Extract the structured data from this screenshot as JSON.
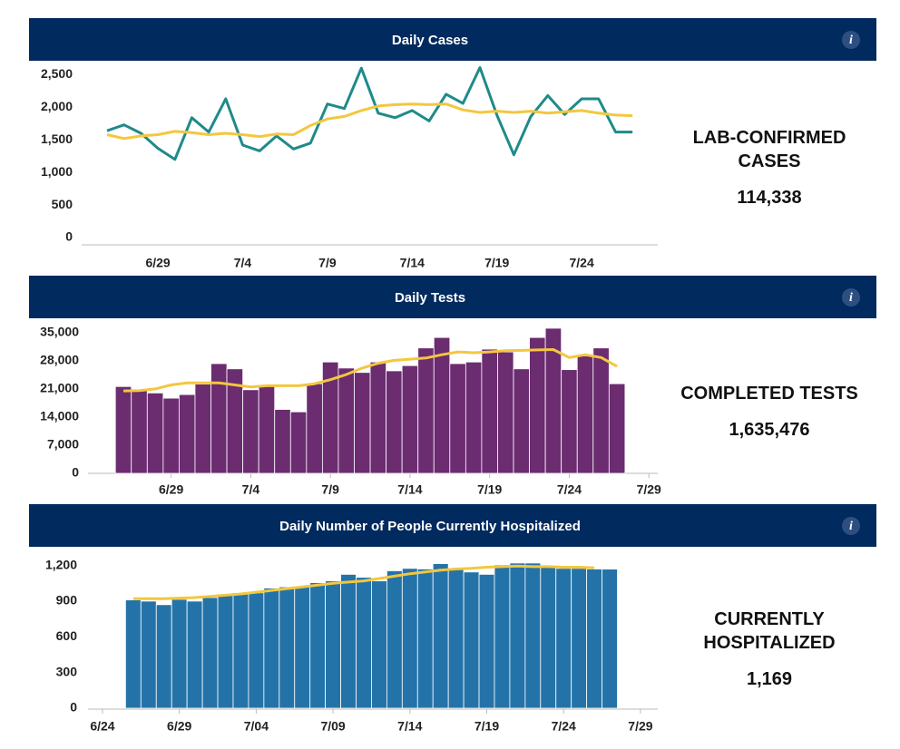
{
  "chart_data": [
    {
      "type": "line",
      "title": "Daily Cases",
      "info_icon": "i",
      "summary": {
        "label": "LAB-CONFIRMED CASES",
        "value": "114,338"
      },
      "categories": [
        null,
        null,
        null,
        "6/29",
        null,
        null,
        null,
        null,
        "7/4",
        null,
        null,
        null,
        null,
        "7/9",
        null,
        null,
        null,
        null,
        "7/14",
        null,
        null,
        null,
        null,
        "7/19",
        null,
        null,
        null,
        null,
        "7/24",
        null,
        null,
        null
      ],
      "series": [
        {
          "type": "line",
          "color": "#1f8a8a",
          "values": [
            1640,
            1730,
            1600,
            1370,
            1200,
            1840,
            1620,
            2130,
            1420,
            1330,
            1560,
            1360,
            1450,
            2050,
            1980,
            2600,
            1910,
            1840,
            1950,
            1790,
            2200,
            2060,
            2610,
            1880,
            1270,
            1860,
            2180,
            1890,
            2130,
            2130,
            1620,
            1620
          ]
        },
        {
          "type": "line",
          "color": "#f3c73f",
          "values": [
            1580,
            1520,
            1560,
            1580,
            1630,
            1610,
            1580,
            1600,
            1580,
            1550,
            1590,
            1580,
            1720,
            1820,
            1860,
            1950,
            2020,
            2040,
            2050,
            2040,
            2050,
            1960,
            1920,
            1940,
            1920,
            1940,
            1910,
            1930,
            1950,
            1910,
            1880,
            1870
          ]
        }
      ],
      "ylim": [
        0,
        2700
      ],
      "yticks": [
        0,
        500,
        {
          "value": 1000,
          "label": "1,000"
        },
        {
          "value": 1500,
          "label": "1,500"
        },
        {
          "value": 2000,
          "label": "2,000"
        },
        {
          "value": 2500,
          "label": "2,500"
        }
      ]
    },
    {
      "type": "bar",
      "title": "Daily Tests",
      "info_icon": "i",
      "summary": {
        "label": "COMPLETED TESTS",
        "value": "1,635,476"
      },
      "categories": [
        null,
        null,
        null,
        "6/29",
        null,
        null,
        null,
        null,
        "7/4",
        null,
        null,
        null,
        null,
        "7/9",
        null,
        null,
        null,
        null,
        "7/14",
        null,
        null,
        null,
        null,
        "7/19",
        null,
        null,
        null,
        null,
        "7/24",
        null,
        null,
        null,
        null,
        "7/29"
      ],
      "series": [
        {
          "type": "bar",
          "color": "#6b2c70",
          "values": [
            21600,
            20600,
            20000,
            18700,
            19600,
            22200,
            27300,
            26000,
            20800,
            21800,
            15900,
            15300,
            22300,
            27700,
            26200,
            25100,
            27700,
            25500,
            26800,
            31200,
            33800,
            27300,
            27700,
            30900,
            30200,
            26000,
            33800,
            36100,
            25800,
            29200,
            31200,
            22300,
            null,
            null
          ]
        },
        {
          "type": "line",
          "color": "#f3c73f",
          "values": [
            20500,
            20600,
            21000,
            22000,
            22500,
            22500,
            22500,
            22000,
            21500,
            21800,
            21800,
            21800,
            22300,
            23300,
            24600,
            26200,
            27400,
            28100,
            28400,
            28700,
            29500,
            30200,
            30000,
            30200,
            30500,
            30600,
            30700,
            30800,
            28800,
            29500,
            28800,
            26600,
            null,
            null
          ]
        }
      ],
      "ylim": [
        0,
        37000
      ],
      "yticks": [
        0,
        {
          "value": 7000,
          "label": "7,000"
        },
        {
          "value": 14000,
          "label": "14,000"
        },
        {
          "value": 21000,
          "label": "21,000"
        },
        {
          "value": 28000,
          "label": "28,000"
        },
        {
          "value": 35000,
          "label": "35,000"
        }
      ]
    },
    {
      "type": "bar",
      "title": "Daily Number of People Currently Hospitalized",
      "info_icon": "i",
      "summary": {
        "label": "CURRENTLY HOSPITALIZED",
        "value": "1,169"
      },
      "categories": [
        "6/24",
        null,
        null,
        null,
        null,
        "6/29",
        null,
        null,
        null,
        null,
        "7/04",
        null,
        null,
        null,
        null,
        "7/09",
        null,
        null,
        null,
        null,
        "7/14",
        null,
        null,
        null,
        null,
        "7/19",
        null,
        null,
        null,
        null,
        "7/24",
        null,
        null,
        null,
        null,
        "7/29"
      ],
      "series": [
        {
          "type": "bar",
          "color": "#2473a8",
          "values": [
            null,
            null,
            910,
            900,
            870,
            915,
            900,
            930,
            960,
            970,
            970,
            1010,
            1020,
            1020,
            1055,
            1070,
            1125,
            1100,
            1070,
            1155,
            1175,
            1170,
            1215,
            1175,
            1145,
            1125,
            1205,
            1220,
            1220,
            1185,
            1175,
            1175,
            1170,
            1169,
            null,
            null
          ]
        },
        {
          "type": "line",
          "color": "#f3c73f",
          "values": [
            null,
            null,
            920,
            920,
            920,
            925,
            930,
            940,
            950,
            960,
            975,
            990,
            1005,
            1020,
            1035,
            1050,
            1060,
            1070,
            1090,
            1110,
            1130,
            1145,
            1160,
            1170,
            1175,
            1185,
            1190,
            1195,
            1190,
            1190,
            1185,
            1185,
            1180,
            null,
            null,
            null
          ]
        }
      ],
      "ylim": [
        0,
        1250
      ],
      "yticks": [
        0,
        300,
        600,
        900,
        {
          "value": 1200,
          "label": "1,200"
        }
      ]
    }
  ]
}
